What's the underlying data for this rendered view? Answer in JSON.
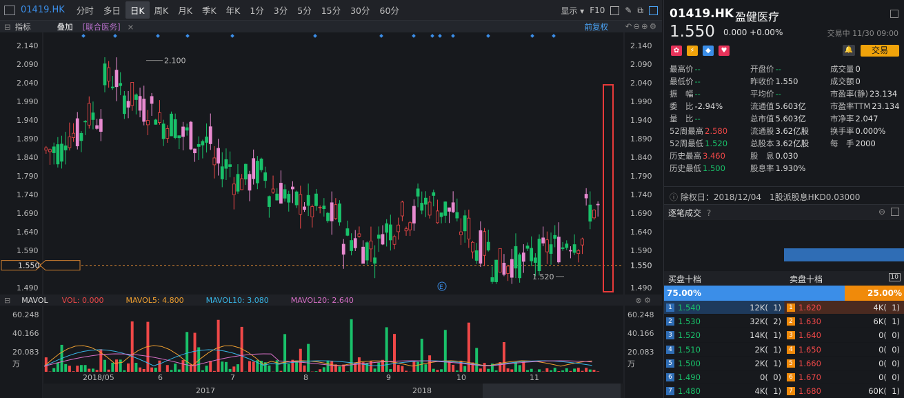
{
  "toolbar": {
    "code": "01419.HK",
    "periods": [
      "分时",
      "多日",
      "日K",
      "周K",
      "月K",
      "季K",
      "年K",
      "1分",
      "3分",
      "5分",
      "15分",
      "30分",
      "60分"
    ],
    "active": "日K",
    "display": "显示",
    "f10": "F10"
  },
  "subbar": {
    "indicator": "指标",
    "overlay": "叠加",
    "tag": "[联合医务]",
    "close": "×",
    "restore": "前复权"
  },
  "price_axis": {
    "labels": [
      "2.140",
      "2.090",
      "2.040",
      "1.990",
      "1.940",
      "1.890",
      "1.840",
      "1.790",
      "1.740",
      "1.690",
      "1.640",
      "1.590",
      "1.550",
      "1.490"
    ],
    "current": "1.550",
    "max_label": "2.100",
    "min_label": "1.520"
  },
  "volume": {
    "title": "MAVOL",
    "vol": "VOL: 0.000",
    "ma5": "MAVOL5: 4.800",
    "ma10": "MAVOL10: 3.080",
    "ma20": "MAVOL20: 2.640",
    "labels": [
      "60.248",
      "40.166",
      "20.083",
      "万"
    ]
  },
  "date_axis": [
    "2018/05",
    "6",
    "7",
    "8",
    "9",
    "10",
    "11"
  ],
  "navigator": [
    "2017",
    "2018"
  ],
  "quote": {
    "code": "01419.HK",
    "name": "盈健医疗",
    "price": "1.550",
    "change": "0.000 +0.00%",
    "status": "交易中 11/30 09:00",
    "trade_btn": "交易"
  },
  "stats": [
    {
      "label": "最高价",
      "value": "--"
    },
    {
      "label": "开盘价",
      "value": "--"
    },
    {
      "label": "成交量",
      "value": "0"
    },
    {
      "label": "最低价",
      "value": "--"
    },
    {
      "label": "昨收价",
      "value": "1.550"
    },
    {
      "label": "成交额",
      "value": "0"
    },
    {
      "label": "振　幅",
      "value": "--"
    },
    {
      "label": "平均价",
      "value": "--"
    },
    {
      "label": "市盈率(静)",
      "value": "23.134"
    },
    {
      "label": "委　比",
      "value": "-2.94%"
    },
    {
      "label": "流通值",
      "value": "5.603亿"
    },
    {
      "label": "市盈率TTM",
      "value": "23.134"
    },
    {
      "label": "量　比",
      "value": "--"
    },
    {
      "label": "总市值",
      "value": "5.603亿"
    },
    {
      "label": "市净率",
      "value": "2.047"
    },
    {
      "label": "52周最高",
      "value": "2.580"
    },
    {
      "label": "流通股",
      "value": "3.62亿股"
    },
    {
      "label": "换手率",
      "value": "0.000%"
    },
    {
      "label": "52周最低",
      "value": "1.520"
    },
    {
      "label": "总股本",
      "value": "3.62亿股"
    },
    {
      "label": "每　手",
      "value": "2000"
    },
    {
      "label": "历史最高",
      "value": "3.460"
    },
    {
      "label": "股　息",
      "value": "0.030"
    },
    {
      "label": "",
      "value": ""
    },
    {
      "label": "历史最低",
      "value": "1.500"
    },
    {
      "label": "股息率",
      "value": "1.930%"
    },
    {
      "label": "",
      "value": ""
    }
  ],
  "ex_right": "除权日：2018/12/04　1股派股息HKD0.03000",
  "ticks_title": "逐笔成交",
  "orderbook": {
    "buy_title": "买盘十档",
    "sell_title": "卖盘十档",
    "buy_pct": "75.00%",
    "sell_pct": "25.00%",
    "bids": [
      {
        "n": "1",
        "p": "1.540",
        "v": "12K(",
        "c": "1)"
      },
      {
        "n": "2",
        "p": "1.530",
        "v": "32K(",
        "c": "2)"
      },
      {
        "n": "3",
        "p": "1.520",
        "v": "14K(",
        "c": "1)"
      },
      {
        "n": "4",
        "p": "1.510",
        "v": "2K(",
        "c": "1)"
      },
      {
        "n": "5",
        "p": "1.500",
        "v": "2K(",
        "c": "1)"
      },
      {
        "n": "6",
        "p": "1.490",
        "v": "0(",
        "c": "0)"
      },
      {
        "n": "7",
        "p": "1.480",
        "v": "4K(",
        "c": "1)"
      }
    ],
    "asks": [
      {
        "n": "1",
        "p": "1.620",
        "v": "4K(",
        "c": "1)"
      },
      {
        "n": "2",
        "p": "1.630",
        "v": "6K(",
        "c": "1)"
      },
      {
        "n": "3",
        "p": "1.640",
        "v": "0(",
        "c": "0)"
      },
      {
        "n": "4",
        "p": "1.650",
        "v": "0(",
        "c": "0)"
      },
      {
        "n": "5",
        "p": "1.660",
        "v": "0(",
        "c": "0)"
      },
      {
        "n": "6",
        "p": "1.670",
        "v": "0(",
        "c": "0)"
      },
      {
        "n": "7",
        "p": "1.680",
        "v": "60K(",
        "c": "1)"
      }
    ]
  },
  "colors": {
    "up": "#f04848",
    "down": "#19c16a",
    "candle_pink": "#e88ad0",
    "accent": "#3b8ee8",
    "orange": "#f08a0a"
  }
}
